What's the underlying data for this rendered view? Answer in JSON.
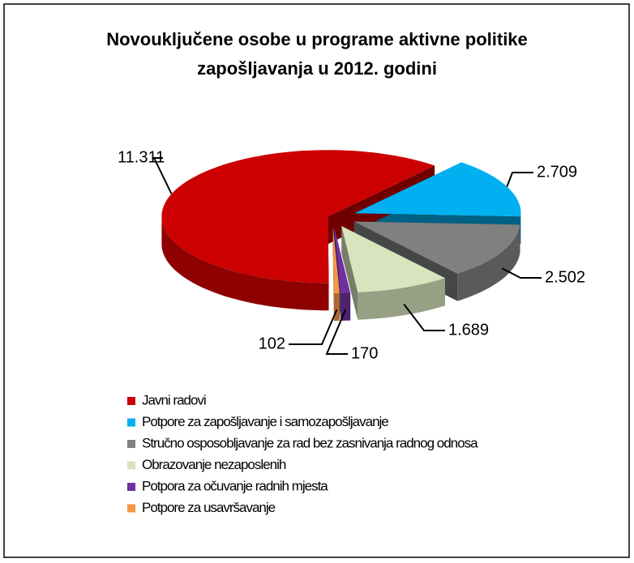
{
  "chart_data": {
    "type": "pie3d",
    "title": [
      "Novouključene osobe u programe aktivne politike",
      "zapošljavanja  u 2012. godini"
    ],
    "categories": [
      "Javni radovi",
      "Potpore za zapošljavanje i samozapošljavanje",
      "Stručno osposobljavanje za rad bez zasnivanja radnog odnosa",
      "Obrazovanje nezaposlenih",
      "Potpora za očuvanje radnih mjesta",
      "Potpore za usavršavanje"
    ],
    "values": [
      11311,
      2709,
      2502,
      1689,
      170,
      102
    ],
    "value_labels": [
      "11.311",
      "2.709",
      "2.502",
      "1.689",
      "170",
      "102"
    ],
    "colors": [
      "#cc0000",
      "#00b0f0",
      "#808080",
      "#d7e4bd",
      "#7030a0",
      "#f79646"
    ],
    "legend": "bottom"
  }
}
